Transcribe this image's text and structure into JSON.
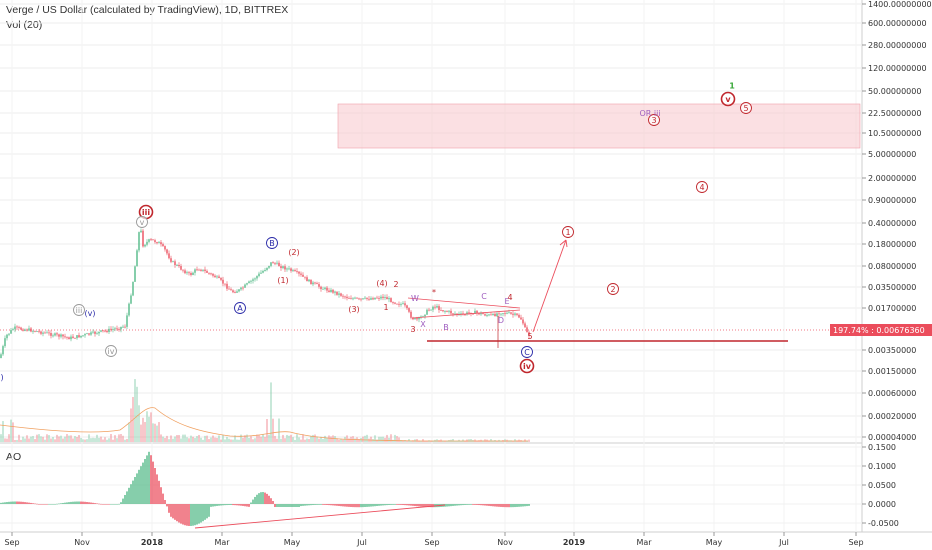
{
  "header": {
    "title": "Verge / US Dollar (calculated by TradingView), 1D, BITTREX",
    "volume_label": "Vol (20)",
    "ao_label": "AO"
  },
  "colors": {
    "up": "#53b987",
    "down": "#eb4d5c",
    "wave_red": "#c0272d",
    "wave_blue": "#2a2aa8",
    "wave_green": "#3aa83a",
    "wave_grey": "#9a9a9a",
    "zone": "#f7c6cc",
    "purple": "#a060c0"
  },
  "chart_data": [
    {
      "type": "line",
      "panel": "price",
      "y_scale": "log",
      "y_ticks": [
        "1400.00000000",
        "600.00000000",
        "280.00000000",
        "120.00000000",
        "50.00000000",
        "22.50000000",
        "10.50000000",
        "5.00000000",
        "2.00000000",
        "0.90000000",
        "0.40000000",
        "0.18000000",
        "0.08000000",
        "0.03500000",
        "0.01700000",
        "0.00676360",
        "0.00350000",
        "0.00150000",
        "0.00060000",
        "0.00020000",
        "0.00004000"
      ],
      "x_ticks": [
        "Sep",
        "Nov",
        "2018",
        "Mar",
        "May",
        "Jul",
        "Sep",
        "Nov",
        "2019",
        "Mar",
        "May",
        "Jul",
        "Sep"
      ],
      "last_price_badge": {
        "percent": "197.74%",
        "price": "0.00676360"
      },
      "wave_labels": [
        {
          "text": "iii",
          "style": "red-circle-bold"
        },
        {
          "text": "v",
          "style": "grey-circle"
        },
        {
          "text": "iii",
          "style": "grey-circle"
        },
        {
          "text": "(v)",
          "style": "blue-text"
        },
        {
          "text": "iv",
          "style": "grey-circle"
        },
        {
          "text": ")",
          "style": "blue-text"
        },
        {
          "text": "B",
          "style": "blue-circle"
        },
        {
          "text": "A",
          "style": "blue-circle"
        },
        {
          "text": "(2)",
          "style": "red-text"
        },
        {
          "text": "(1)",
          "style": "red-text"
        },
        {
          "text": "(4)",
          "style": "red-text"
        },
        {
          "text": "2",
          "style": "red-text"
        },
        {
          "text": "(3)",
          "style": "red-text"
        },
        {
          "text": "1",
          "style": "red-text"
        },
        {
          "text": "3",
          "style": "red-text"
        },
        {
          "text": "W",
          "style": "purple-text"
        },
        {
          "text": "*",
          "style": "red-text"
        },
        {
          "text": "X",
          "style": "purple-text"
        },
        {
          "text": "B",
          "style": "purple-text"
        },
        {
          "text": "C",
          "style": "purple-text"
        },
        {
          "text": "D",
          "style": "purple-text"
        },
        {
          "text": "E",
          "style": "purple-text"
        },
        {
          "text": "4",
          "style": "red-text"
        },
        {
          "text": "5",
          "style": "red-text"
        },
        {
          "text": "C",
          "style": "blue-circle"
        },
        {
          "text": "iv",
          "style": "red-circle-bold"
        },
        {
          "text": "1",
          "style": "red-circle"
        },
        {
          "text": "2",
          "style": "red-circle"
        },
        {
          "text": "3",
          "style": "red-circle"
        },
        {
          "text": "4",
          "style": "red-circle"
        },
        {
          "text": "5",
          "style": "red-circle"
        },
        {
          "text": "v",
          "style": "red-circle-bold"
        },
        {
          "text": "1",
          "style": "green-text"
        },
        {
          "text": "OR iii",
          "style": "purple-text"
        }
      ]
    },
    {
      "type": "bar",
      "panel": "awesome-oscillator",
      "y_ticks": [
        "0.1500",
        "0.1000",
        "0.0500",
        "0.0000",
        "-0.0500"
      ]
    }
  ]
}
